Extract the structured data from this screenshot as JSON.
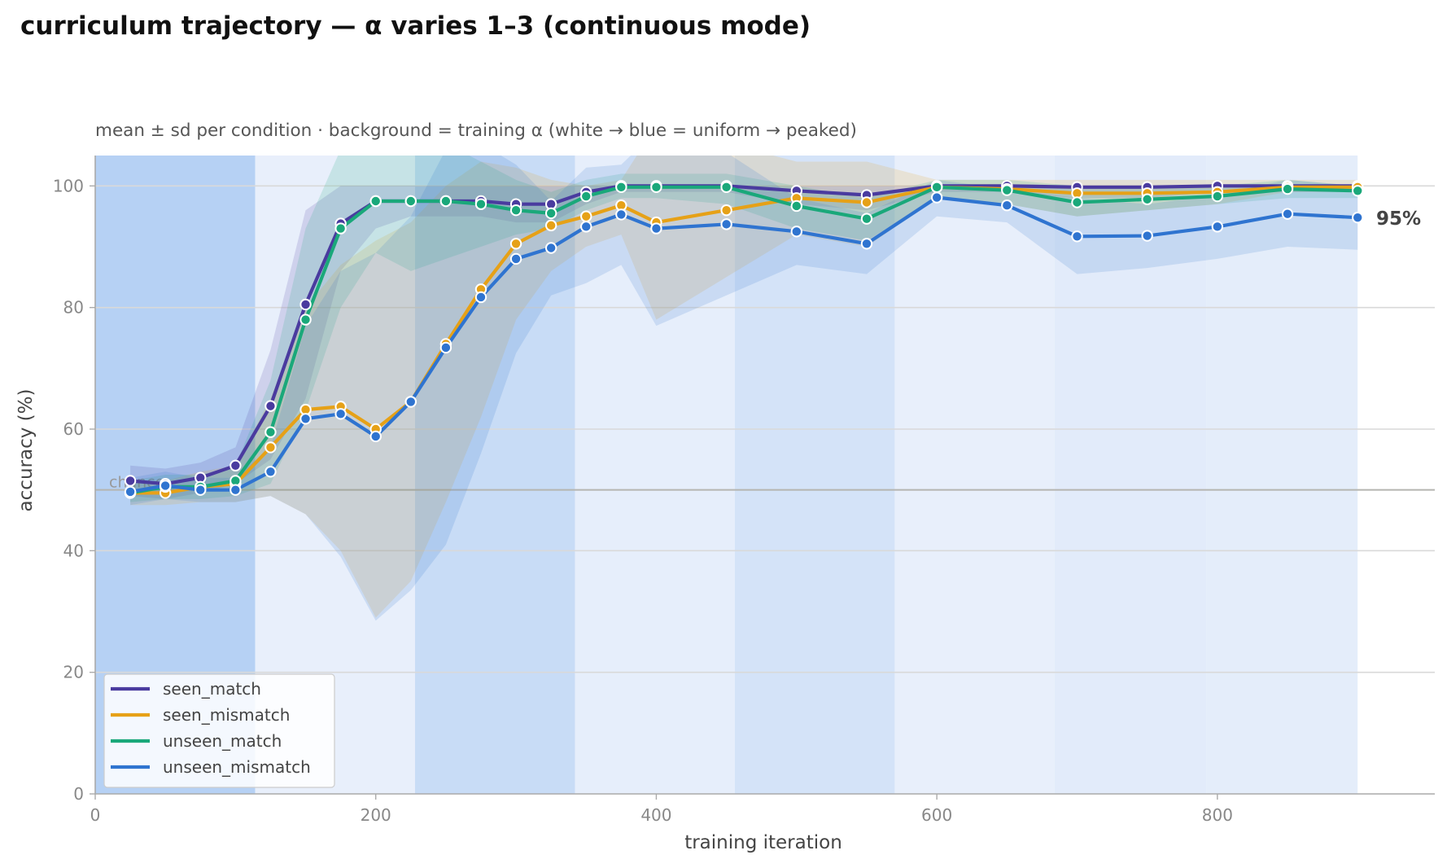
{
  "chart_data": {
    "type": "line",
    "title": "curriculum trajectory — α varies 1–3 (continuous mode)",
    "subtitle": "mean ± sd per condition · background = training α (white → blue = uniform → peaked)",
    "xlabel": "training iteration",
    "ylabel": "accuracy (%)",
    "xlim": [
      0,
      955
    ],
    "ylim": [
      0,
      105
    ],
    "xticks": [
      "0",
      "200",
      "400",
      "600",
      "800"
    ],
    "yticks": [
      "0",
      "20",
      "40",
      "60",
      "80",
      "100"
    ],
    "grid": "horizontal",
    "legend_position": "lower-left",
    "reference_line": {
      "label": "chance",
      "y": 50,
      "color": "#b5b5b0"
    },
    "end_annotation": {
      "label": "95%",
      "x": 900,
      "y": 94.8
    },
    "background_bands": [
      {
        "x0": 0,
        "x1": 114,
        "alpha": 3.0
      },
      {
        "x0": 114,
        "x1": 228,
        "alpha": 1.0
      },
      {
        "x0": 228,
        "x1": 342,
        "alpha": 2.3
      },
      {
        "x0": 342,
        "x1": 456,
        "alpha": 1.1
      },
      {
        "x0": 456,
        "x1": 570,
        "alpha": 1.8
      },
      {
        "x0": 570,
        "x1": 684,
        "alpha": 1.0
      },
      {
        "x0": 684,
        "x1": 792,
        "alpha": 1.25
      },
      {
        "x0": 792,
        "x1": 900,
        "alpha": 1.15
      }
    ],
    "x": [
      25,
      50,
      75,
      100,
      125,
      150,
      175,
      200,
      225,
      250,
      275,
      300,
      325,
      350,
      375,
      400,
      450,
      500,
      550,
      600,
      650,
      700,
      750,
      800,
      850,
      900
    ],
    "series": [
      {
        "name": "seen_match",
        "color": "#4a3b9f",
        "values": [
          51.5,
          51,
          52,
          54,
          63.8,
          80.5,
          93.8,
          97.5,
          97.5,
          97.5,
          97.5,
          97,
          97,
          99,
          100,
          100,
          100,
          99.2,
          98.5,
          100,
          100,
          99.8,
          99.8,
          100,
          100,
          100
        ],
        "sd_lower": [
          49,
          48.5,
          49.5,
          51,
          55,
          65,
          86,
          93,
          95,
          95,
          95,
          94,
          94,
          97,
          99,
          99,
          99,
          97,
          96,
          99,
          99,
          98,
          98,
          99,
          99,
          99
        ],
        "sd_upper": [
          54,
          53.5,
          54.5,
          57,
          73,
          96,
          100,
          100,
          100,
          100,
          100,
          100,
          100,
          100,
          100,
          100,
          100,
          100,
          100,
          100,
          100,
          100,
          100,
          100,
          100,
          100
        ]
      },
      {
        "name": "seen_mismatch",
        "color": "#e6a117",
        "values": [
          49.5,
          49.5,
          50.5,
          51,
          57,
          63.2,
          63.7,
          60,
          64.5,
          74,
          83,
          90.5,
          93.5,
          95,
          96.8,
          94,
          96,
          98,
          97.3,
          99.8,
          99.5,
          98.8,
          98.8,
          99,
          99.8,
          99.8
        ],
        "sd_lower": [
          47.5,
          47.5,
          48,
          48,
          49,
          46,
          40,
          29,
          35,
          48,
          62,
          78,
          86,
          90,
          92,
          78,
          85,
          92,
          90,
          98,
          97,
          95,
          96,
          97,
          99,
          99
        ],
        "sd_upper": [
          51.5,
          51.5,
          53,
          54,
          65,
          80,
          87,
          91,
          94,
          100,
          104,
          103,
          101,
          100,
          101,
          110,
          107,
          104,
          104,
          101,
          101,
          101,
          101,
          101,
          101,
          101
        ]
      },
      {
        "name": "unseen_match",
        "color": "#1aa87a",
        "values": [
          49.5,
          50.5,
          50.5,
          51.5,
          59.5,
          78,
          93,
          97.5,
          97.5,
          97.5,
          97,
          96,
          95.5,
          98.3,
          99.8,
          99.8,
          99.8,
          96.7,
          94.6,
          99.8,
          99.3,
          97.3,
          97.8,
          98.3,
          99.5,
          99.2
        ],
        "sd_lower": [
          48,
          48.5,
          48.5,
          49,
          51,
          63,
          80,
          89,
          86,
          88,
          90,
          92,
          93,
          96,
          98,
          98,
          97,
          93,
          91,
          98,
          97,
          95,
          96,
          97,
          98,
          98
        ],
        "sd_upper": [
          51.5,
          52.5,
          52.5,
          54,
          68,
          93,
          106,
          106,
          109,
          107,
          104,
          101,
          99,
          101,
          102,
          102,
          102,
          100,
          98,
          101,
          101,
          100,
          100,
          100,
          101,
          100
        ]
      },
      {
        "name": "unseen_mismatch",
        "color": "#2f74d0",
        "values": [
          49.7,
          50.7,
          50,
          50,
          53,
          61.7,
          62.5,
          58.8,
          64.5,
          73.4,
          81.7,
          88,
          89.8,
          93.3,
          95.3,
          93,
          93.7,
          92.5,
          90.5,
          98.1,
          96.8,
          91.7,
          91.8,
          93.3,
          95.4,
          94.8
        ],
        "sd_lower": [
          47.5,
          48.5,
          48,
          48,
          49,
          46,
          39,
          28.5,
          33.5,
          41,
          56,
          72.5,
          82,
          84,
          87,
          77,
          82,
          87,
          85.5,
          95,
          94,
          85.5,
          86.5,
          88,
          90,
          89.5
        ],
        "sd_upper": [
          52,
          53,
          52,
          52,
          57,
          77,
          86,
          89,
          95,
          106,
          107,
          103.5,
          97.5,
          103,
          103.5,
          109,
          105.5,
          98,
          95.5,
          101,
          99.5,
          98,
          97,
          98.5,
          101,
          100
        ]
      }
    ]
  }
}
